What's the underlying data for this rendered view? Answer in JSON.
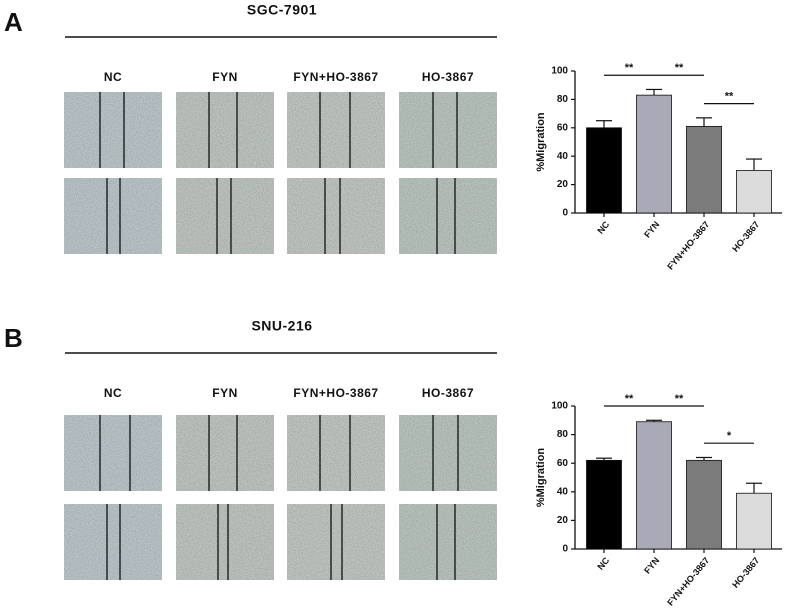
{
  "panels": [
    {
      "label": "A",
      "title": "SGC-7901",
      "image_labels": [
        "NC",
        "FYN",
        "FYN+HO-3867",
        "HO-3867"
      ]
    },
    {
      "label": "B",
      "title": "SNU-216",
      "image_labels": [
        "NC",
        "FYN",
        "FYN+HO-3867",
        "HO-3867"
      ]
    }
  ],
  "chart_data": [
    {
      "type": "bar",
      "y_label": "%Migration",
      "categories": [
        "NC",
        "FYN",
        "FYN+HO-3867",
        "HO-3867"
      ],
      "values": [
        60,
        83,
        61,
        30
      ],
      "errors": [
        5,
        4,
        6,
        8
      ],
      "colors": [
        "#000000",
        "#a9a9b8",
        "#7b7b7b",
        "#dcdcdc"
      ],
      "ylim": [
        0,
        100
      ],
      "yticks": [
        0,
        20,
        40,
        60,
        80,
        100
      ],
      "significance": [
        "**",
        "**",
        "**"
      ]
    },
    {
      "type": "bar",
      "y_label": "%Migration",
      "categories": [
        "NC",
        "FYN",
        "FYN+HO-3867",
        "HO-3867"
      ],
      "values": [
        62,
        89,
        62,
        39
      ],
      "errors": [
        1.5,
        1,
        2,
        7
      ],
      "colors": [
        "#000000",
        "#a9a9b8",
        "#7b7b7b",
        "#dcdcdc"
      ],
      "ylim": [
        0,
        100
      ],
      "yticks": [
        0,
        20,
        40,
        60,
        80,
        100
      ],
      "significance": [
        "**",
        "**",
        "*"
      ]
    }
  ]
}
